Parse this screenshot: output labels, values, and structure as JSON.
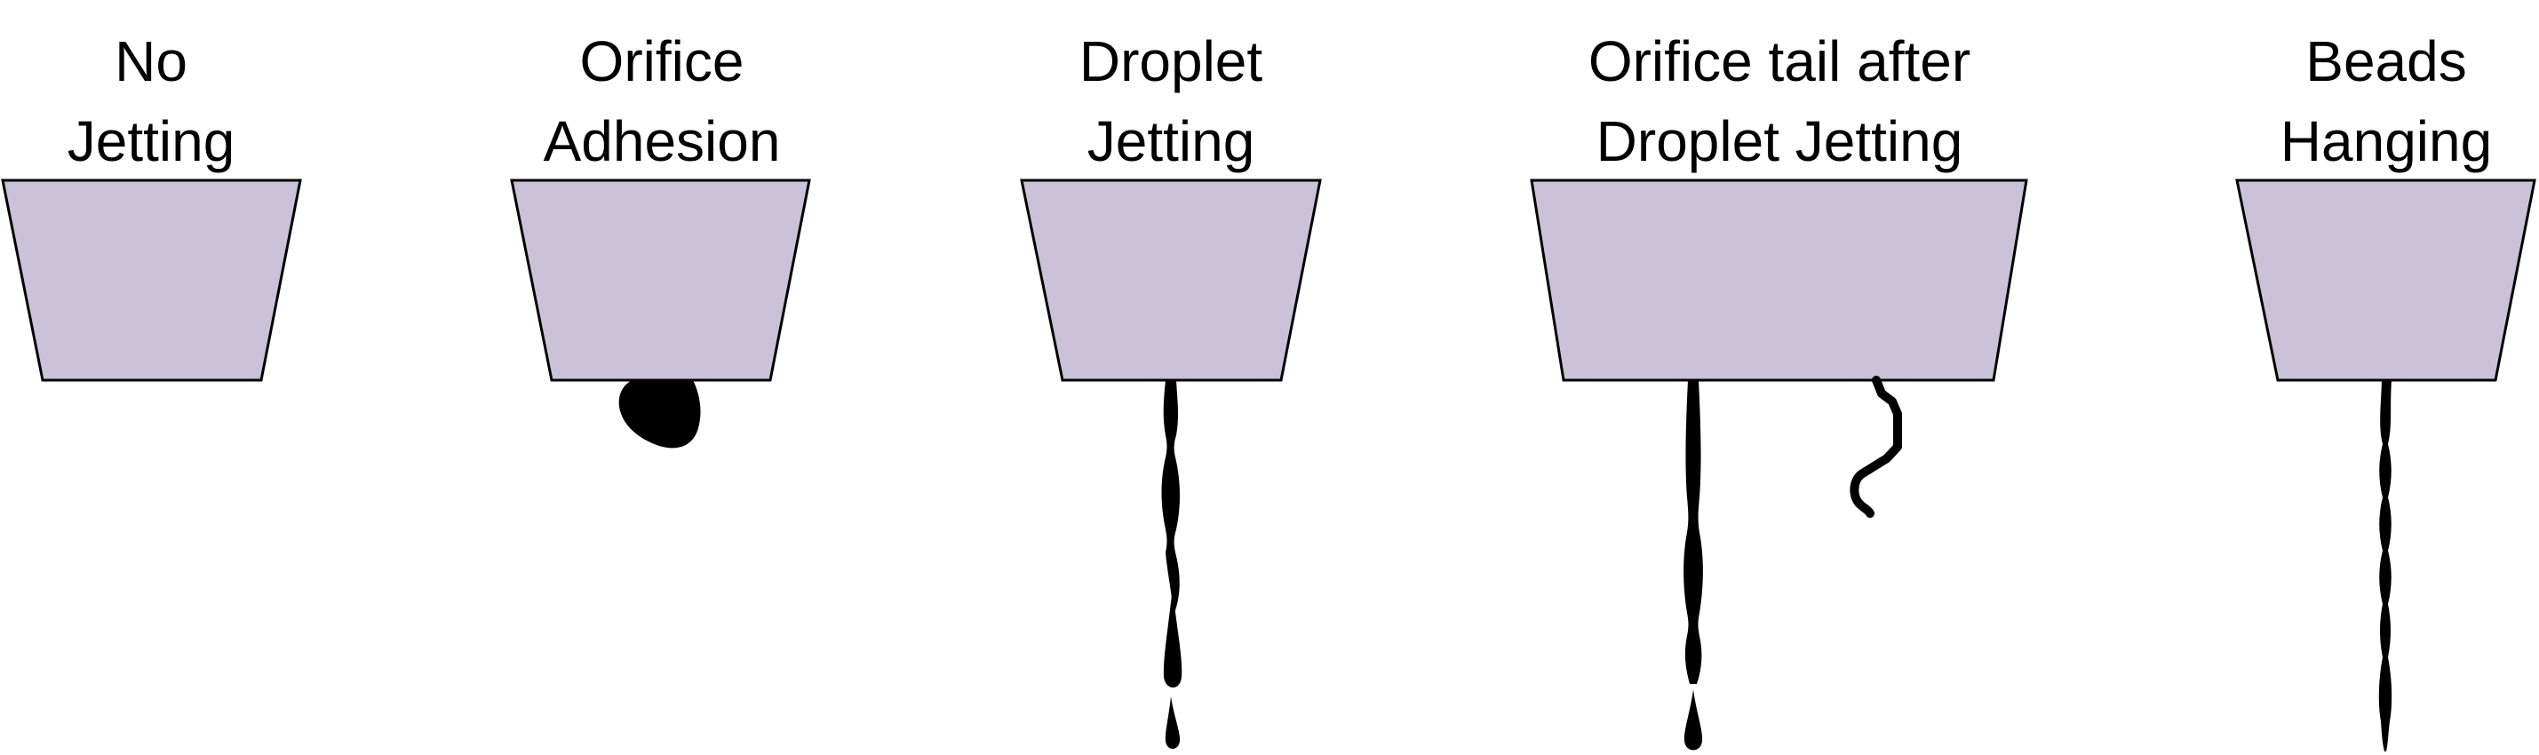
{
  "colors": {
    "nozzle_fill": "#cbc2d9",
    "outline": "#000000",
    "ink": "#000000",
    "background": "#ffffff"
  },
  "panels": [
    {
      "id": "no-jetting",
      "label_lines": [
        "No",
        "Jetting"
      ]
    },
    {
      "id": "orifice-adhesion",
      "label_lines": [
        "Orifice",
        "Adhesion"
      ]
    },
    {
      "id": "droplet-jetting",
      "label_lines": [
        "Droplet",
        "Jetting"
      ]
    },
    {
      "id": "orifice-tail",
      "label_lines": [
        "Orifice tail after",
        "Droplet Jetting"
      ]
    },
    {
      "id": "beads-hanging",
      "label_lines": [
        "Beads",
        "Hanging"
      ]
    }
  ]
}
